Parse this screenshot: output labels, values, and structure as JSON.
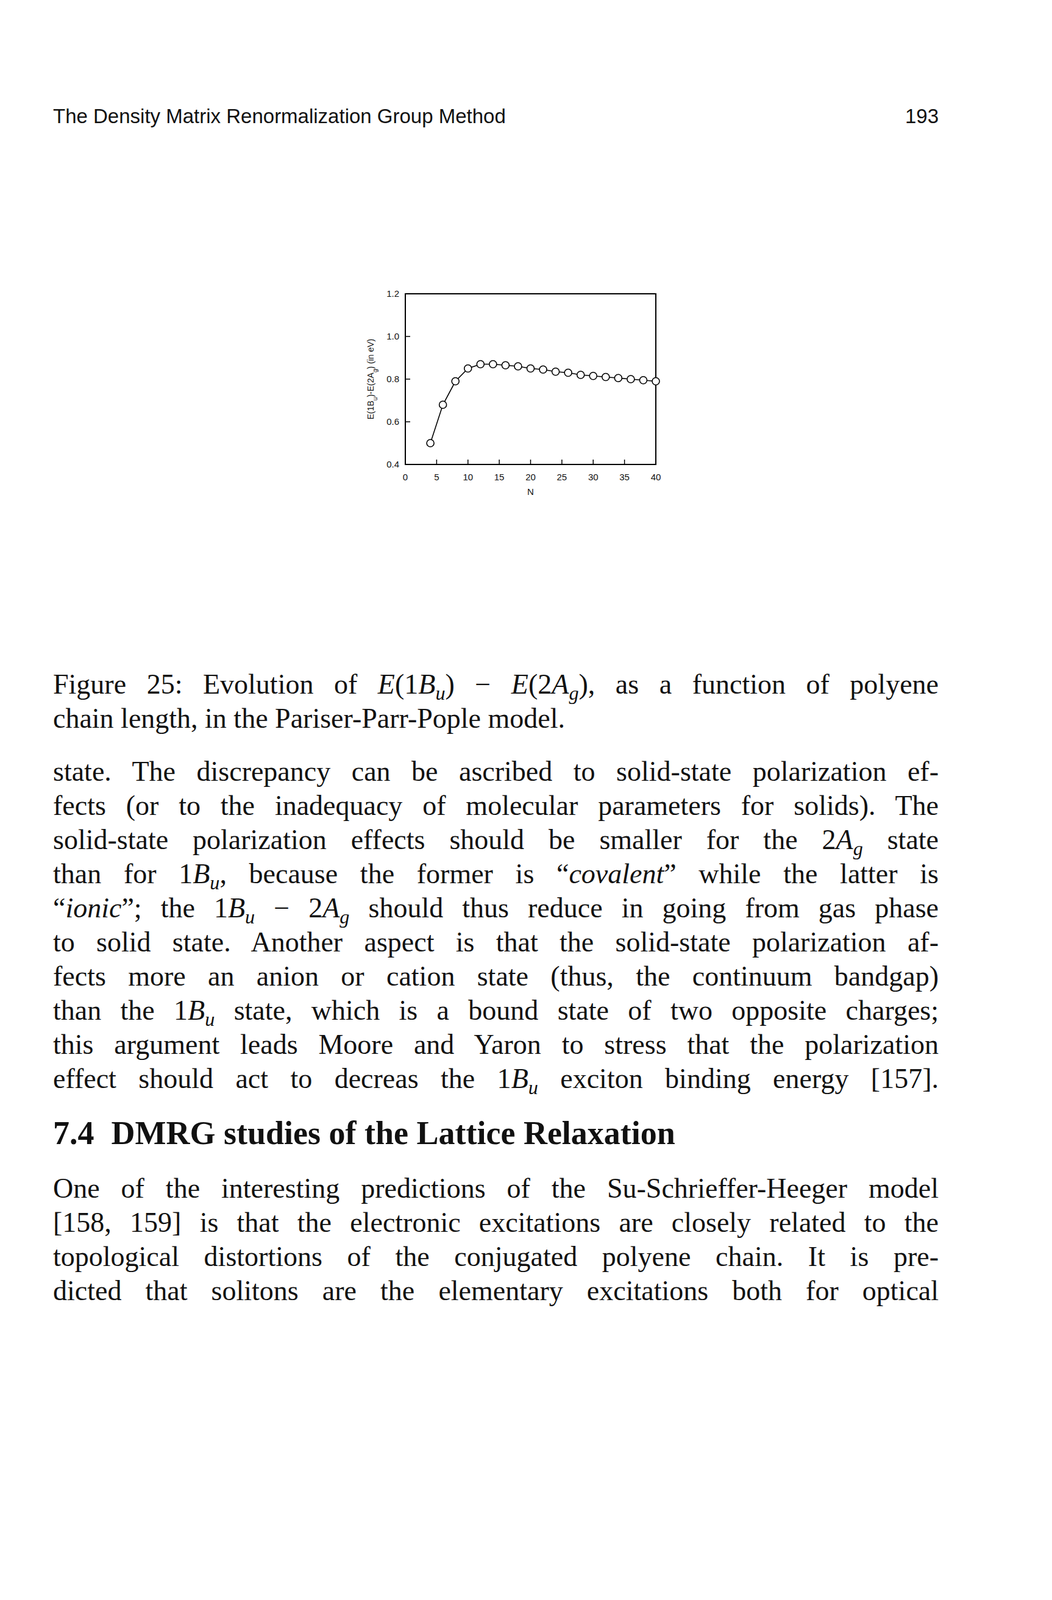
{
  "header": {
    "title": "The Density Matrix Renormalization Group Method",
    "page": "193"
  },
  "chart_data": {
    "type": "line",
    "x_label": "N",
    "y_label": "E(1Bu)-E(2Ag) (in eV)",
    "x": [
      4,
      6,
      8,
      10,
      12,
      14,
      16,
      18,
      20,
      22,
      24,
      26,
      28,
      30,
      32,
      34,
      36,
      38,
      40
    ],
    "values": [
      0.5,
      0.68,
      0.79,
      0.85,
      0.87,
      0.87,
      0.865,
      0.86,
      0.85,
      0.845,
      0.835,
      0.83,
      0.82,
      0.815,
      0.81,
      0.805,
      0.8,
      0.795,
      0.79
    ],
    "xlim": [
      0,
      40
    ],
    "ylim": [
      0.4,
      1.2
    ],
    "xticks": [
      0,
      5,
      10,
      15,
      20,
      25,
      30,
      35,
      40
    ],
    "yticks": [
      0.4,
      0.6,
      0.8,
      {
        "value": 1,
        "label": "1.0"
      },
      1.2
    ],
    "marker": "circle",
    "color": "#000000"
  },
  "caption": {
    "lines": [
      "Figure 25: Evolution of E(1Bu) − E(2Ag), as a function of polyene",
      "chain length, in the Pariser-Parr-Pople model."
    ]
  },
  "paragraphs": [
    {
      "lines": [
        "state. The discrepancy can be ascribed to solid-state polarization ef-",
        "fects (or to the inadequacy of molecular parameters for solids). The",
        "solid-state polarization effects should be smaller for the 2Ag state",
        "than for 1Bu, because the former is “covalent” while the latter is",
        "“ionic”; the 1Bu − 2Ag should thus reduce in going from gas phase",
        "to solid state. Another aspect is that the solid-state polarization af-",
        "fects more an anion or cation state (thus, the continuum bandgap)",
        "than the 1Bu state, which is a bound state of two opposite charges;",
        "this argument leads Moore and Yaron to stress that the polarization",
        "effect should act to decreas the 1Bu exciton binding energy [157]."
      ]
    },
    {
      "lines": [
        "One of the interesting predictions of the Su-Schrieffer-Heeger model",
        "[158, 159] is that the electronic excitations are closely related to the",
        "topological distortions of the conjugated polyene chain. It is pre-",
        "dicted that solitons are the elementary excitations both for optical"
      ]
    }
  ],
  "section": {
    "number": "7.4",
    "title": "DMRG studies of the Lattice Relaxation"
  }
}
